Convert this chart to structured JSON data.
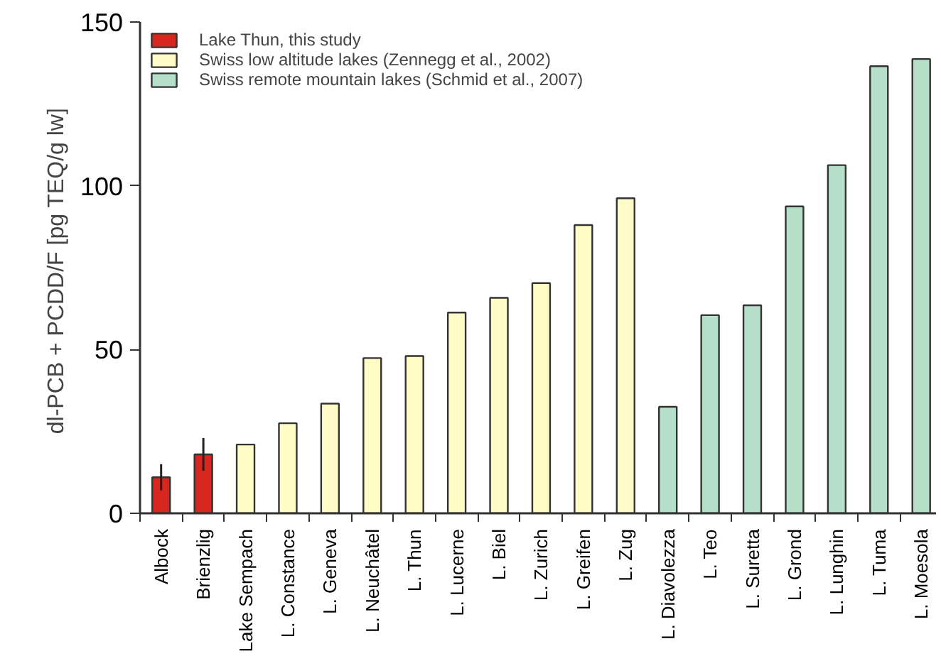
{
  "chart_data": {
    "type": "bar",
    "ylabel": "dl-PCB + PCDD/F  [pg TEQ/g lw]",
    "categories": [
      "Albock",
      "Brienzlig",
      "Lake Sempach",
      "L. Constance",
      "L. Geneva",
      "L. Neuchâtel",
      "L. Thun",
      "L. Lucerne",
      "L. Biel",
      "L. Zurich",
      "L. Greifen",
      "L. Zug",
      "L. Diavolezza",
      "L. Teo",
      "L. Suretta",
      "L. Grond",
      "L. Lunghin",
      "L. Tuma",
      "L. Moesola"
    ],
    "series": [
      {
        "name": "Lake Thun, this study",
        "color": "#d7261e",
        "values": [
          11,
          18,
          null,
          null,
          null,
          null,
          null,
          null,
          null,
          null,
          null,
          null,
          null,
          null,
          null,
          null,
          null,
          null,
          null
        ],
        "errors": [
          [
            7,
            15
          ],
          [
            13,
            23
          ],
          null,
          null,
          null,
          null,
          null,
          null,
          null,
          null,
          null,
          null,
          null,
          null,
          null,
          null,
          null,
          null,
          null
        ]
      },
      {
        "name": "Swiss low altitude lakes (Zennegg et al., 2002)",
        "color": "#fffcc8",
        "values": [
          null,
          null,
          21,
          27.5,
          33.5,
          47.4,
          48,
          61.3,
          65.8,
          70.3,
          88,
          96.2,
          null,
          null,
          null,
          null,
          null,
          null,
          null
        ]
      },
      {
        "name": "Swiss remote mountain lakes (Schmid et al., 2007)",
        "color": "#b5dfc8",
        "values": [
          null,
          null,
          null,
          null,
          null,
          null,
          null,
          null,
          null,
          null,
          null,
          null,
          32.5,
          60.5,
          63.5,
          93.7,
          106.3,
          136.5,
          138.7
        ]
      }
    ],
    "ylim": [
      0,
      150
    ],
    "yticks": [
      0,
      50,
      100,
      150
    ],
    "grid": false,
    "legend": "top left"
  }
}
